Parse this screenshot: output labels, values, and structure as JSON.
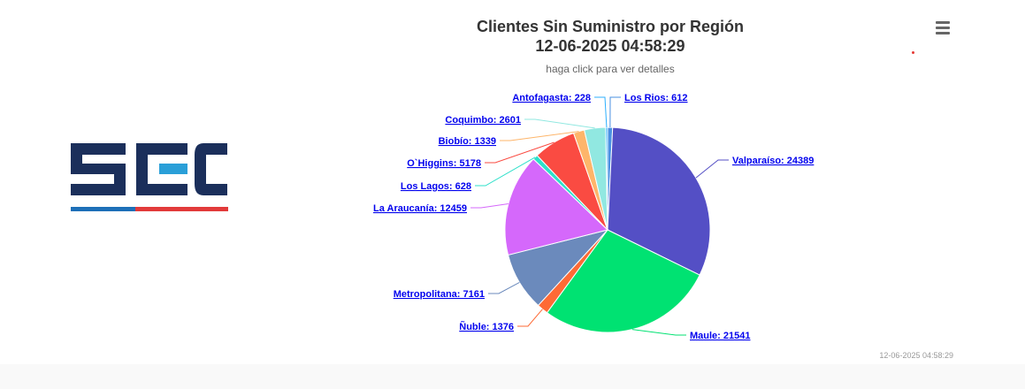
{
  "chart_data": {
    "type": "pie",
    "title": "Clientes Sin Suministro por Región",
    "datetime": "12-06-2025 04:58:29",
    "subtitle": "haga click para ver detalles",
    "credits": "12-06-2025 04:58:29",
    "slices": [
      {
        "name": "Los Rios",
        "value": 612,
        "color": "#4a90e2"
      },
      {
        "name": "Valparaíso",
        "value": 24389,
        "color": "#544fc5"
      },
      {
        "name": "Maule",
        "value": 21541,
        "color": "#00e272"
      },
      {
        "name": "Ñuble",
        "value": 1376,
        "color": "#fe6a35"
      },
      {
        "name": "Metropolitana",
        "value": 7161,
        "color": "#6b8abc"
      },
      {
        "name": "La Araucanía",
        "value": 12459,
        "color": "#d568fb"
      },
      {
        "name": "Los Lagos",
        "value": 628,
        "color": "#2ee0ca"
      },
      {
        "name": "O`Higgins",
        "value": 5178,
        "color": "#fa4b42"
      },
      {
        "name": "Biobío",
        "value": 1339,
        "color": "#feb56a"
      },
      {
        "name": "Coquimbo",
        "value": 2601,
        "color": "#91e8e1"
      },
      {
        "name": "Antofagasta",
        "value": 228,
        "color": "#2caffe"
      }
    ]
  },
  "logo": {
    "text": "SEC"
  }
}
